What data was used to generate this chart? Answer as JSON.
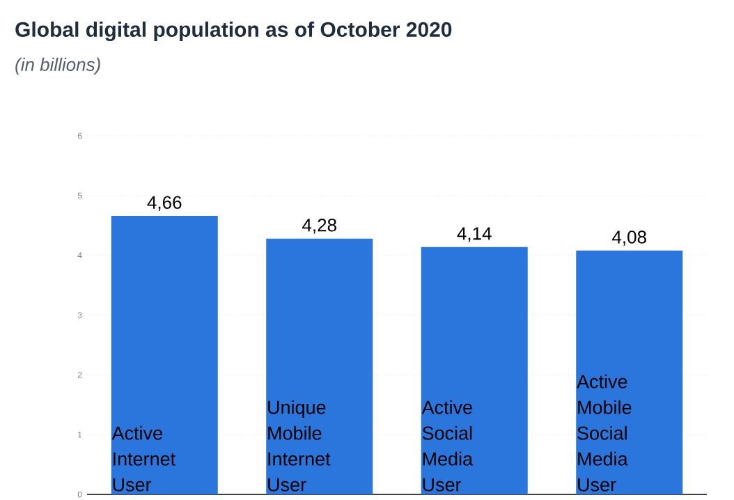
{
  "chart_data": {
    "type": "bar",
    "title": "Global digital population as of October 2020",
    "subtitle": "(in billions)",
    "categories": [
      "Active Internet User",
      "Unique Mobile Internet User",
      "Active Social Media User",
      "Active Mobile Social Media User"
    ],
    "values": [
      4.66,
      4.28,
      4.14,
      4.08
    ],
    "value_labels": [
      "4,66",
      "4,28",
      "4,14",
      "4,08"
    ],
    "color": "#2a76dd",
    "ylim": [
      0,
      6
    ],
    "yticks": [
      0,
      1,
      2,
      3,
      4,
      5,
      6
    ],
    "grid": "y"
  }
}
